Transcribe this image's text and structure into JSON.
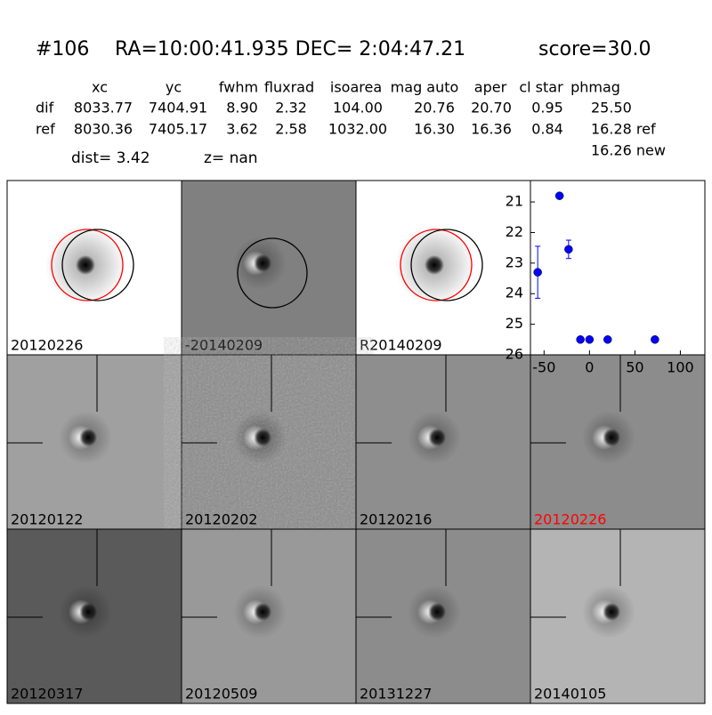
{
  "header": {
    "id": "#106",
    "coords": "RA=10:00:41.935 DEC= 2:04:47.21",
    "score": "score=30.0"
  },
  "table": {
    "columns": [
      "xc",
      "yc",
      "fwhm",
      "fluxrad",
      "isoarea",
      "mag auto",
      "aper",
      "cl star",
      "phmag"
    ],
    "rows": [
      [
        "dif",
        "8033.77",
        "7404.91",
        "8.90",
        "2.32",
        "104.00",
        "20.76",
        "20.70",
        "0.95",
        "25.50"
      ],
      [
        "ref",
        "8030.36",
        "7405.17",
        "3.62",
        "2.58",
        "1032.00",
        "16.30",
        "16.36",
        "0.84",
        "16.28 ref"
      ]
    ],
    "extra": "16.26 new",
    "dist": "dist=  3.42",
    "z": "z=   nan"
  },
  "panels": [
    {
      "label": "20120226",
      "background": "#ffffff",
      "style": "ref",
      "label_color": "#000000"
    },
    {
      "label": "-20140209",
      "background": "#808080",
      "style": "dif",
      "label_color": "#000000"
    },
    {
      "label": "R20140209",
      "background": "#ffffff",
      "style": "ref",
      "label_color": "#000000"
    },
    {
      "label": "20120122",
      "background": "#a0a0a0",
      "style": "epoch",
      "label_color": "#000000"
    },
    {
      "label": "20120202",
      "background": "#8a8a8a",
      "style": "noisy",
      "label_color": "#000000"
    },
    {
      "label": "20120216",
      "background": "#8e8e8e",
      "style": "epoch",
      "label_color": "#000000"
    },
    {
      "label": "20120226",
      "background": "#8c8c8c",
      "style": "epoch",
      "label_color": "#ff0000"
    },
    {
      "label": "20120317",
      "background": "#5a5a5a",
      "style": "epoch",
      "label_color": "#000000"
    },
    {
      "label": "20120509",
      "background": "#999999",
      "style": "epoch",
      "label_color": "#000000"
    },
    {
      "label": "20131227",
      "background": "#8c8c8c",
      "style": "epoch",
      "label_color": "#000000"
    },
    {
      "label": "20140105",
      "background": "#b4b4b4",
      "style": "epoch",
      "label_color": "#000000"
    }
  ],
  "chart_data": {
    "type": "scatter",
    "color": "#0000ff",
    "x": [
      -57,
      -33,
      -23,
      -10,
      0,
      20,
      72
    ],
    "y": [
      23.3,
      20.8,
      22.55,
      25.5,
      25.5,
      25.5,
      25.5
    ],
    "errors": [
      0.85,
      null,
      0.3,
      null,
      null,
      null,
      null
    ],
    "xlim": [
      -65,
      127
    ],
    "ylim": [
      20.3,
      26
    ],
    "y_inverted": true,
    "xticks": [
      -50,
      0,
      50,
      100
    ],
    "yticks": [
      21,
      22,
      23,
      24,
      25,
      26
    ]
  }
}
